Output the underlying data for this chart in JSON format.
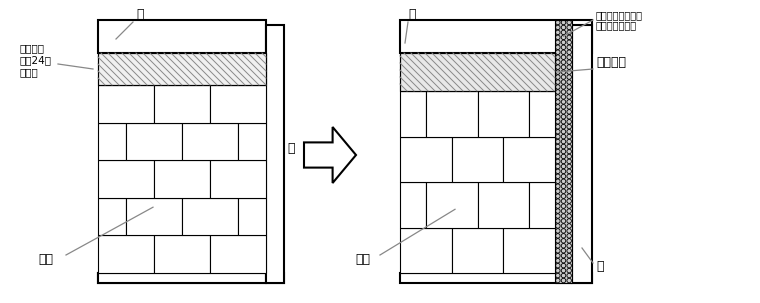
{
  "bg_color": "#ffffff",
  "line_color": "#000000",
  "gray_color": "#888888",
  "fig_width": 7.6,
  "fig_height": 3.03,
  "dpi": 100,
  "label_liang_L": "梁",
  "label_zhu_L": "柱",
  "label_qiti_L": "砌体",
  "label_zhuhu": "砌筑完后\n停置24小\n时以上",
  "label_liang_R": "梁",
  "label_zhu_R": "柱",
  "label_qiti_R": "砌体",
  "label_wire": "砌体与钢筋混凝土\n交接面铺钢丝网",
  "label_xie": "斜砌顶紧"
}
